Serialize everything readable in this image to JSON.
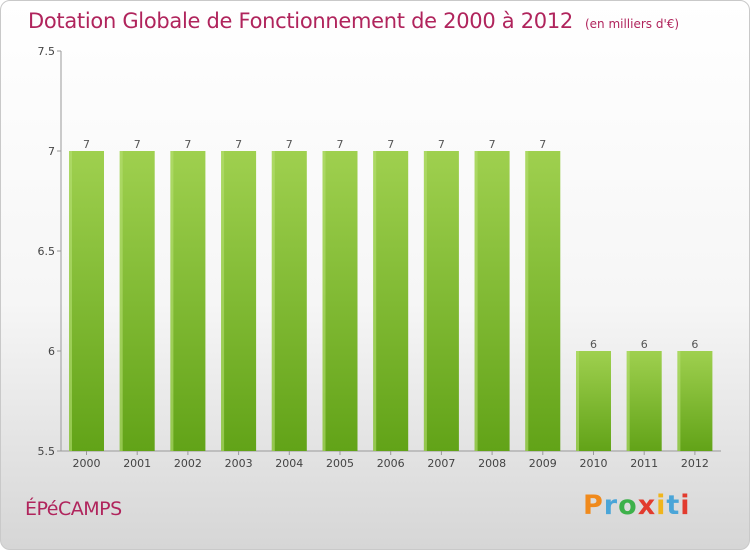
{
  "page": {
    "commune": "ÉPéCAMPS",
    "logo": {
      "text": "Proxiti",
      "colors": [
        "#f08a1c",
        "#4aa5d8",
        "#3db14a",
        "#e23b2e",
        "#f0b51c",
        "#4aa5d8",
        "#e23b2e"
      ]
    }
  },
  "chart_data": {
    "type": "bar",
    "title": "Dotation Globale de Fonctionnement de 2000 à 2012",
    "subtitle": "(en milliers d'€)",
    "categories": [
      "2000",
      "2001",
      "2002",
      "2003",
      "2004",
      "2005",
      "2006",
      "2007",
      "2008",
      "2009",
      "2010",
      "2011",
      "2012"
    ],
    "values": [
      7,
      7,
      7,
      7,
      7,
      7,
      7,
      7,
      7,
      7,
      6,
      6,
      6
    ],
    "data_labels": [
      "7",
      "7",
      "7",
      "7",
      "7",
      "7",
      "7",
      "7",
      "7",
      "7",
      "6",
      "6",
      "6"
    ],
    "ylim": [
      5.5,
      7.5
    ],
    "yticks": [
      "5.5",
      "6",
      "6.5",
      "7",
      "7.5"
    ],
    "bar_color": "#7dbb2e",
    "bar_color_light": "#9ccf4e",
    "xlabel": "",
    "ylabel": ""
  }
}
